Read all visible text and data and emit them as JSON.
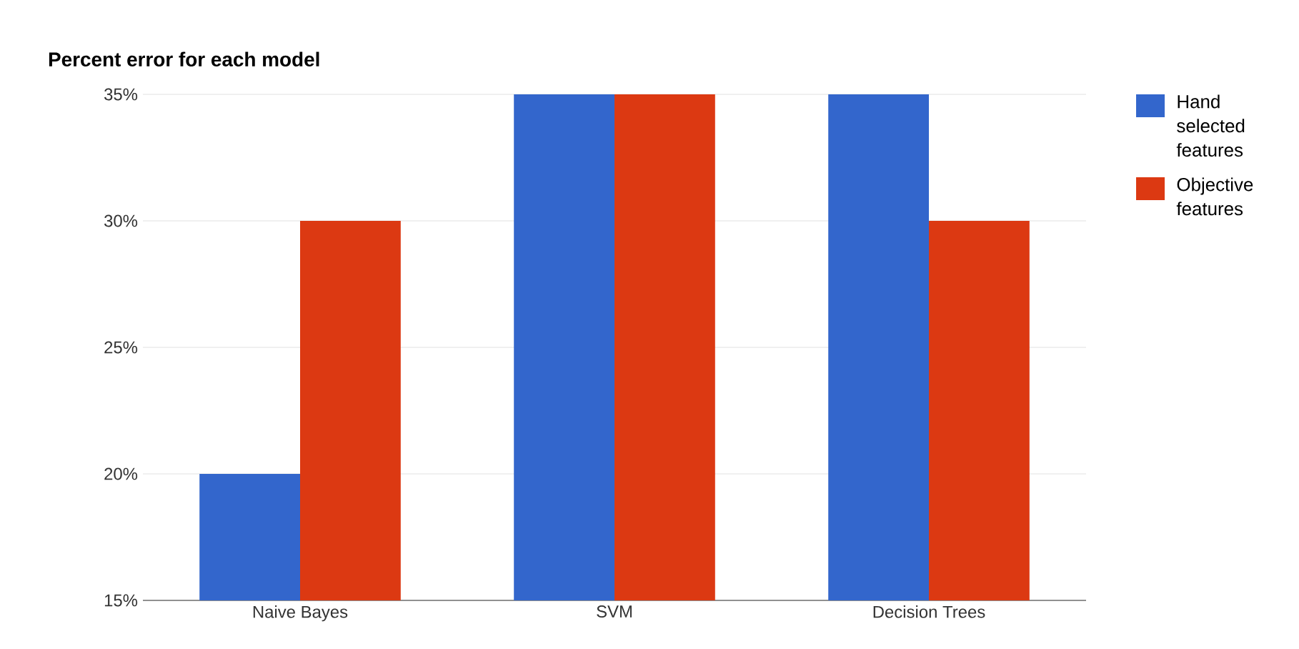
{
  "chart_data": {
    "type": "bar",
    "title": "Percent error for each model",
    "categories": [
      "Naive Bayes",
      "SVM",
      "Decision Trees"
    ],
    "series": [
      {
        "name": "Hand selected features",
        "color": "#3366cc",
        "values": [
          20,
          35,
          35
        ]
      },
      {
        "name": "Objective features",
        "color": "#dc3912",
        "values": [
          30,
          35,
          30
        ]
      }
    ],
    "ylim": [
      15,
      35
    ],
    "yticks": [
      {
        "value": 15,
        "label": "15%"
      },
      {
        "value": 20,
        "label": "20%"
      },
      {
        "value": 25,
        "label": "25%"
      },
      {
        "value": 30,
        "label": "30%"
      },
      {
        "value": 35,
        "label": "35%"
      }
    ],
    "grid": "y",
    "legend": "right"
  }
}
